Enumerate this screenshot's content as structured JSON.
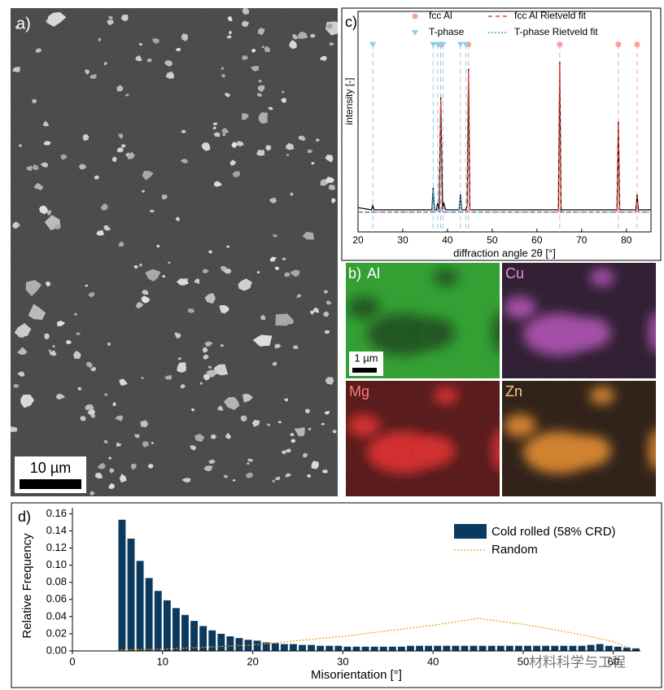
{
  "panels": {
    "sem": {
      "label": "a)",
      "scale_bar": "10 µm"
    },
    "maps": {
      "label": "b)",
      "elements": [
        "Al",
        "Cu",
        "Mg",
        "Zn"
      ],
      "scale_bar": "1 µm"
    },
    "watermark": "材料科学与工程"
  },
  "chart_data": [
    {
      "type": "line",
      "panel_label": "c)",
      "xlabel": "diffraction angle 2θ [°]",
      "ylabel": "intensity [-]",
      "xlim": [
        20,
        85.5
      ],
      "ylim": [
        0,
        100
      ],
      "xticks": [
        20,
        30,
        40,
        50,
        60,
        70,
        80
      ],
      "series": [
        {
          "name": "fcc Al",
          "color": "#f4a39c",
          "style": "markers",
          "marker": "circle",
          "x": [
            38.5,
            44.7,
            65.1,
            78.2,
            82.4
          ],
          "values": [
            85,
            85,
            85,
            85,
            85
          ]
        },
        {
          "name": "T-phase",
          "color": "#8fcde6",
          "style": "markers",
          "marker": "triangle",
          "x": [
            23.3,
            36.8,
            37.8,
            38.5,
            39.0,
            42.9,
            44.1
          ],
          "values": [
            85,
            85,
            85,
            85,
            85,
            85,
            85
          ]
        },
        {
          "name": "fcc Al Rietveld fit",
          "color": "#f0433a",
          "style": "dashed",
          "x": [
            20,
            38.2,
            38.5,
            38.8,
            44.4,
            44.7,
            45.0,
            64.8,
            65.1,
            65.4,
            77.9,
            78.2,
            78.5,
            82.1,
            82.4,
            82.7,
            85.5
          ],
          "values": [
            9,
            9,
            60,
            9,
            9,
            73,
            9,
            9,
            76,
            9,
            9,
            49,
            9,
            9,
            16,
            9,
            9
          ]
        },
        {
          "name": "T-phase Rietveld fit",
          "color": "#3aa6d8",
          "style": "dotted",
          "x": [
            20,
            36.5,
            36.8,
            37.1,
            37.5,
            37.8,
            38.1,
            38.9,
            39.2,
            39.5,
            42.6,
            42.9,
            43.2,
            85.5
          ],
          "values": [
            9,
            9,
            19,
            9,
            9,
            12,
            9,
            9,
            12,
            9,
            9,
            16,
            9,
            9
          ]
        },
        {
          "color": "#000000",
          "style": "solid",
          "x": [
            20,
            23,
            23.3,
            23.6,
            30,
            36.5,
            36.8,
            37.1,
            37.5,
            37.8,
            38.1,
            38.5,
            38.9,
            39.2,
            39.6,
            42.6,
            42.9,
            43.2,
            44.1,
            44.4,
            44.7,
            45.0,
            50,
            55,
            64.8,
            65.1,
            65.4,
            70,
            77.9,
            78.2,
            78.5,
            82.1,
            82.4,
            82.7,
            85.5
          ],
          "values": [
            11,
            10,
            12,
            10,
            10,
            10,
            20,
            10,
            10,
            13,
            10,
            61,
            11,
            13,
            10,
            10,
            17,
            10,
            10,
            12,
            74,
            10,
            10,
            10,
            10,
            77,
            10,
            10,
            10,
            50,
            10,
            10,
            17,
            10,
            10
          ]
        }
      ]
    },
    {
      "type": "histogram",
      "panel_label": "d)",
      "xlabel": "Misorientation [°]",
      "ylabel": "Relative Frequency",
      "bins": [
        5,
        6,
        7,
        8,
        9,
        10,
        11,
        12,
        13,
        14,
        15,
        16,
        17,
        18,
        19,
        20,
        21,
        22,
        23,
        24,
        25,
        26,
        27,
        28,
        29,
        30,
        31,
        32,
        33,
        34,
        35,
        36,
        37,
        38,
        39,
        40,
        41,
        42,
        43,
        44,
        45,
        46,
        47,
        48,
        49,
        50,
        51,
        52,
        53,
        54,
        55,
        56,
        57,
        58,
        59,
        60,
        61,
        62,
        63
      ],
      "xlim": [
        0,
        63
      ],
      "ylim": [
        0,
        0.167
      ],
      "xticks": [
        0,
        10,
        20,
        30,
        40,
        50,
        60
      ],
      "yticks": [
        {
          "value": 0,
          "label": "0.00"
        },
        {
          "value": 0.02,
          "label": "0.02"
        },
        {
          "value": 0.04,
          "label": "0.04"
        },
        {
          "value": 0.06,
          "label": "0.06"
        },
        {
          "value": 0.08,
          "label": "0.08"
        },
        {
          "value": 0.1,
          "label": "0.10"
        },
        {
          "value": 0.12,
          "label": "0.12"
        },
        {
          "value": 0.14,
          "label": "0.14"
        },
        {
          "value": 0.16,
          "label": "0.16"
        }
      ],
      "series": [
        {
          "name": "Cold rolled (58% CRD)",
          "color": "#0b3a5e",
          "values": [
            0.153,
            0.131,
            0.105,
            0.085,
            0.07,
            0.059,
            0.05,
            0.042,
            0.035,
            0.029,
            0.024,
            0.02,
            0.017,
            0.015,
            0.013,
            0.012,
            0.01,
            0.009,
            0.008,
            0.008,
            0.007,
            0.007,
            0.006,
            0.006,
            0.006,
            0.005,
            0.005,
            0.005,
            0.005,
            0.005,
            0.005,
            0.005,
            0.006,
            0.006,
            0.006,
            0.006,
            0.006,
            0.006,
            0.006,
            0.006,
            0.006,
            0.006,
            0.006,
            0.006,
            0.006,
            0.006,
            0.006,
            0.006,
            0.006,
            0.006,
            0.006,
            0.006,
            0.007,
            0.008,
            0.006,
            0.005,
            0.004,
            0.003
          ]
        }
      ],
      "lines": [
        {
          "name": "Random",
          "color": "#f2a516",
          "style": "dotted",
          "x": [
            5,
            10,
            20,
            30,
            40,
            45,
            50,
            55,
            60,
            62
          ],
          "values": [
            0.001,
            0.002,
            0.007,
            0.017,
            0.03,
            0.038,
            0.031,
            0.022,
            0.011,
            0.002
          ]
        }
      ]
    }
  ]
}
